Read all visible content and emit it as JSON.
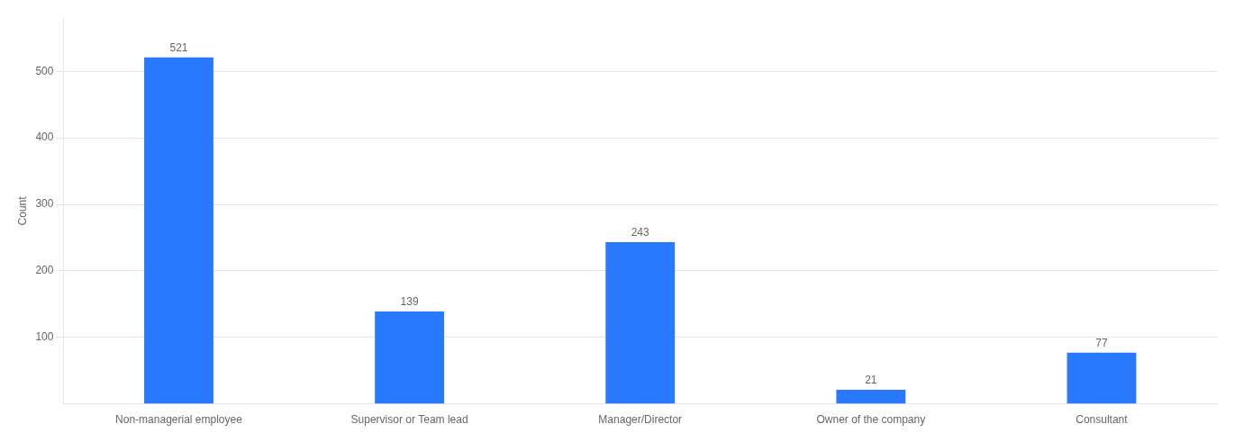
{
  "chart_data": {
    "type": "bar",
    "categories": [
      "Non-managerial employee",
      "Supervisor or Team lead",
      "Manager/Director",
      "Owner of the company",
      "Consultant"
    ],
    "values": [
      521,
      139,
      243,
      21,
      77
    ],
    "color": "#2979FF",
    "ylabel": "Count",
    "ylim": [
      0,
      580
    ],
    "yticks": [
      100,
      200,
      300,
      400,
      500
    ],
    "grid": true,
    "data_labels": true
  }
}
